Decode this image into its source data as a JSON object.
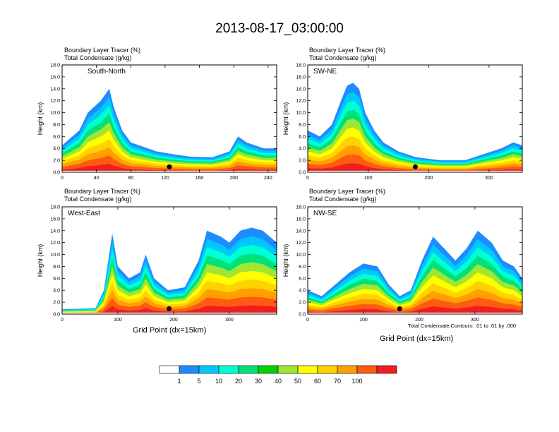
{
  "title": "2013-08-17_03:00:00",
  "panel_header": {
    "line1": "Boundary Layer Tracer   (%)",
    "line2": "Total Condensate   (g/kg)"
  },
  "contour_note": "Total Condensate Contours: .01 to .01 by .000",
  "colorbar": {
    "colors": [
      "#ffffff",
      "#1e8cff",
      "#00c8ff",
      "#00ffd2",
      "#00e17a",
      "#00d200",
      "#a0e632",
      "#ffff00",
      "#ffd200",
      "#ffa000",
      "#ff5a14",
      "#f01e1e"
    ],
    "labels": [
      "1",
      "5",
      "10",
      "20",
      "30",
      "40",
      "50",
      "60",
      "70",
      "100"
    ]
  },
  "chart_data": [
    {
      "type": "heatmap",
      "panel_label": "South-North",
      "ylabel": "Height (km)",
      "xlabel": "",
      "xlim": [
        0,
        250
      ],
      "ylim": [
        0,
        18
      ],
      "xticks": [
        "0",
        "40",
        "80",
        "120",
        "160",
        "200",
        "240"
      ],
      "yticks": [
        "0.0",
        "2.0",
        "4.0",
        "6.0",
        "8.0",
        "10.0",
        "12.0",
        "14.0",
        "16.0",
        "18.0"
      ],
      "marker_x": 125,
      "tracer_top_km": [
        [
          0,
          4.5
        ],
        [
          20,
          7
        ],
        [
          30,
          10
        ],
        [
          45,
          12
        ],
        [
          55,
          14
        ],
        [
          60,
          11
        ],
        [
          70,
          7
        ],
        [
          80,
          5
        ],
        [
          90,
          4.5
        ],
        [
          110,
          3.5
        ],
        [
          130,
          3
        ],
        [
          150,
          2.6
        ],
        [
          175,
          2.5
        ],
        [
          195,
          3.5
        ],
        [
          205,
          6
        ],
        [
          215,
          5
        ],
        [
          225,
          4.5
        ],
        [
          235,
          4
        ],
        [
          250,
          4
        ]
      ]
    },
    {
      "type": "heatmap",
      "panel_label": "SW-NE",
      "ylabel": "Height (km)",
      "xlabel": "",
      "xlim": [
        0,
        355
      ],
      "ylim": [
        0,
        18
      ],
      "xticks": [
        "0",
        "100",
        "200",
        "300"
      ],
      "yticks": [
        "0.0",
        "2.0",
        "4.0",
        "6.0",
        "8.0",
        "10.0",
        "12.0",
        "14.0",
        "16.0",
        "18.0"
      ],
      "marker_x": 178,
      "tracer_top_km": [
        [
          0,
          7
        ],
        [
          20,
          6
        ],
        [
          40,
          8
        ],
        [
          55,
          12
        ],
        [
          65,
          14.5
        ],
        [
          75,
          15
        ],
        [
          85,
          14
        ],
        [
          95,
          10
        ],
        [
          110,
          7
        ],
        [
          125,
          5
        ],
        [
          150,
          3.5
        ],
        [
          180,
          2.5
        ],
        [
          220,
          2
        ],
        [
          260,
          2
        ],
        [
          290,
          3
        ],
        [
          320,
          4
        ],
        [
          340,
          5
        ],
        [
          355,
          4.5
        ]
      ]
    },
    {
      "type": "heatmap",
      "panel_label": "West-East",
      "ylabel": "Height (km)",
      "xlabel": "Grid Point (dx=15km)",
      "xlim": [
        0,
        385
      ],
      "ylim": [
        0,
        18
      ],
      "xticks": [
        "0",
        "100",
        "200",
        "300"
      ],
      "yticks": [
        "0.0",
        "2.0",
        "4.0",
        "6.0",
        "8.0",
        "10.0",
        "12.0",
        "14.0",
        "16.0",
        "18.0"
      ],
      "marker_x": 192,
      "tracer_top_km": [
        [
          0,
          0.8
        ],
        [
          60,
          1
        ],
        [
          75,
          4
        ],
        [
          90,
          13.5
        ],
        [
          100,
          8
        ],
        [
          120,
          6
        ],
        [
          140,
          7
        ],
        [
          150,
          10
        ],
        [
          165,
          6
        ],
        [
          190,
          4
        ],
        [
          220,
          4.5
        ],
        [
          245,
          9
        ],
        [
          260,
          14
        ],
        [
          285,
          13
        ],
        [
          300,
          12
        ],
        [
          320,
          14
        ],
        [
          340,
          14.5
        ],
        [
          360,
          14
        ],
        [
          385,
          12
        ]
      ]
    },
    {
      "type": "heatmap",
      "panel_label": "NW-SE",
      "ylabel": "Height (km)",
      "xlabel": "Grid Point (dx=15km)",
      "xlim": [
        0,
        385
      ],
      "ylim": [
        0,
        18
      ],
      "xticks": [
        "0",
        "100",
        "200",
        "300"
      ],
      "yticks": [
        "0.0",
        "2.0",
        "4.0",
        "6.0",
        "8.0",
        "10.0",
        "12.0",
        "14.0",
        "16.0",
        "18.0"
      ],
      "marker_x": 165,
      "tracer_top_km": [
        [
          0,
          4
        ],
        [
          25,
          3
        ],
        [
          50,
          5
        ],
        [
          75,
          7
        ],
        [
          100,
          8.5
        ],
        [
          125,
          8
        ],
        [
          145,
          5
        ],
        [
          165,
          3
        ],
        [
          185,
          4
        ],
        [
          205,
          9
        ],
        [
          225,
          13
        ],
        [
          245,
          11
        ],
        [
          265,
          9
        ],
        [
          285,
          11
        ],
        [
          305,
          14
        ],
        [
          330,
          12
        ],
        [
          350,
          9
        ],
        [
          370,
          8
        ],
        [
          385,
          6
        ]
      ]
    }
  ]
}
